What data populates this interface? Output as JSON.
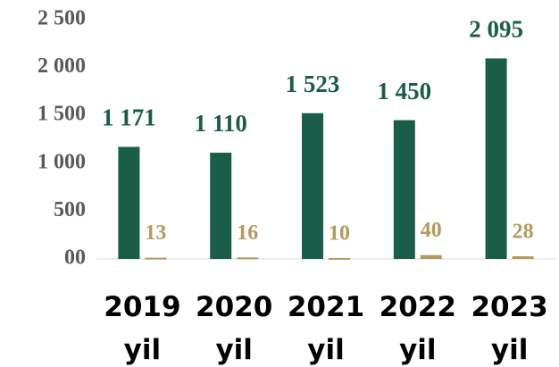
{
  "chart_data": {
    "type": "bar",
    "categories": [
      "2019 yil",
      "2020 yil",
      "2021 yil",
      "2022 yil",
      "2023 yil"
    ],
    "series": [
      {
        "color": "#1a5e4a",
        "values": [
          1171,
          1110,
          1523,
          1450,
          2095
        ],
        "value_labels": [
          "1 171",
          "1 110",
          "1 523",
          "1 450",
          "2 095"
        ]
      },
      {
        "color": "#b49a5c",
        "values": [
          13,
          16,
          10,
          40,
          28
        ]
      }
    ],
    "ylim": [
      0,
      2500
    ],
    "yticks": [
      {
        "value": 2500,
        "label": "2 500"
      },
      {
        "value": 2000,
        "label": "2 000"
      },
      {
        "value": 1500,
        "label": "1 500"
      },
      {
        "value": 1000,
        "label": "1 000"
      },
      500,
      {
        "value": 0,
        "label": "00"
      }
    ],
    "grid": false
  }
}
